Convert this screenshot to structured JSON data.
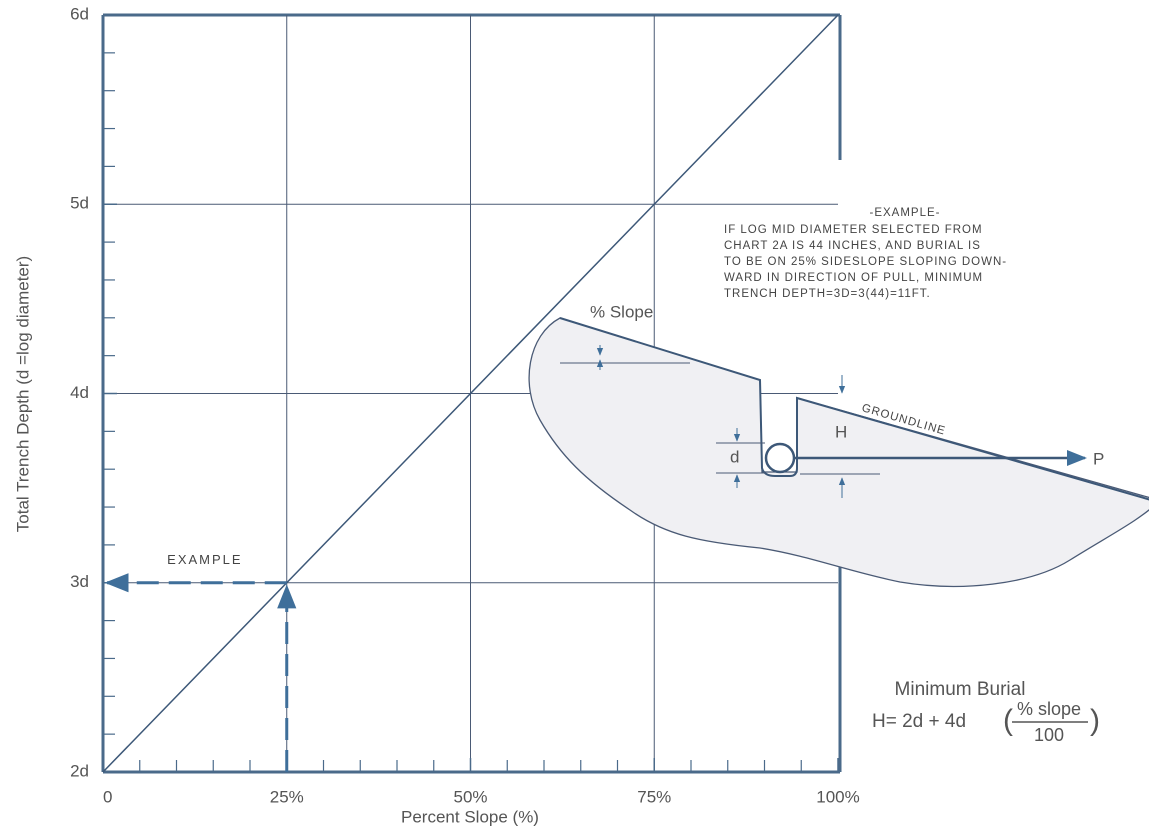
{
  "chart_data": {
    "type": "line",
    "x_label": "Percent Slope (%)",
    "y_label": "Total Trench Depth (d =log diameter)",
    "x": [
      0,
      100
    ],
    "series": [
      {
        "color": "#3d5878",
        "values": [
          2,
          6
        ]
      }
    ],
    "xlim": [
      0,
      100
    ],
    "xticks": [
      0,
      {
        "value": 25,
        "label": "25%"
      },
      {
        "value": 50,
        "label": "50%"
      },
      {
        "value": 75,
        "label": "75%"
      },
      {
        "value": 100,
        "label": "100%"
      }
    ],
    "ylim": [
      2,
      6
    ],
    "yticks": [
      {
        "value": 2,
        "label": "2d"
      },
      {
        "value": 3,
        "label": "3d"
      },
      {
        "value": 4,
        "label": "4d"
      },
      {
        "value": 5,
        "label": "5d"
      },
      {
        "value": 6,
        "label": "6d"
      }
    ],
    "grid": true,
    "example": {
      "label": "EXAMPLE",
      "x": 25,
      "y": 3
    },
    "diagram": {
      "slope_label": "% Slope",
      "h_label": "H",
      "d_label": "d",
      "groundline": "GROUNDLINE",
      "pull_label": "P"
    },
    "note": {
      "title": "-EXAMPLE-",
      "lines": [
        "IF LOG MID DIAMETER SELECTED FROM",
        "CHART 2A IS 44 INCHES, AND BURIAL IS",
        "TO BE ON 25% SIDESLOPE SLOPING DOWN-",
        "WARD IN DIRECTION OF PULL, MINIMUM",
        "TRENCH DEPTH=3D=3(44)=11FT."
      ]
    },
    "formula": {
      "title": "Minimum Burial",
      "lhs": "H= 2d + 4d",
      "numerator": "% slope",
      "denominator": "100"
    }
  }
}
